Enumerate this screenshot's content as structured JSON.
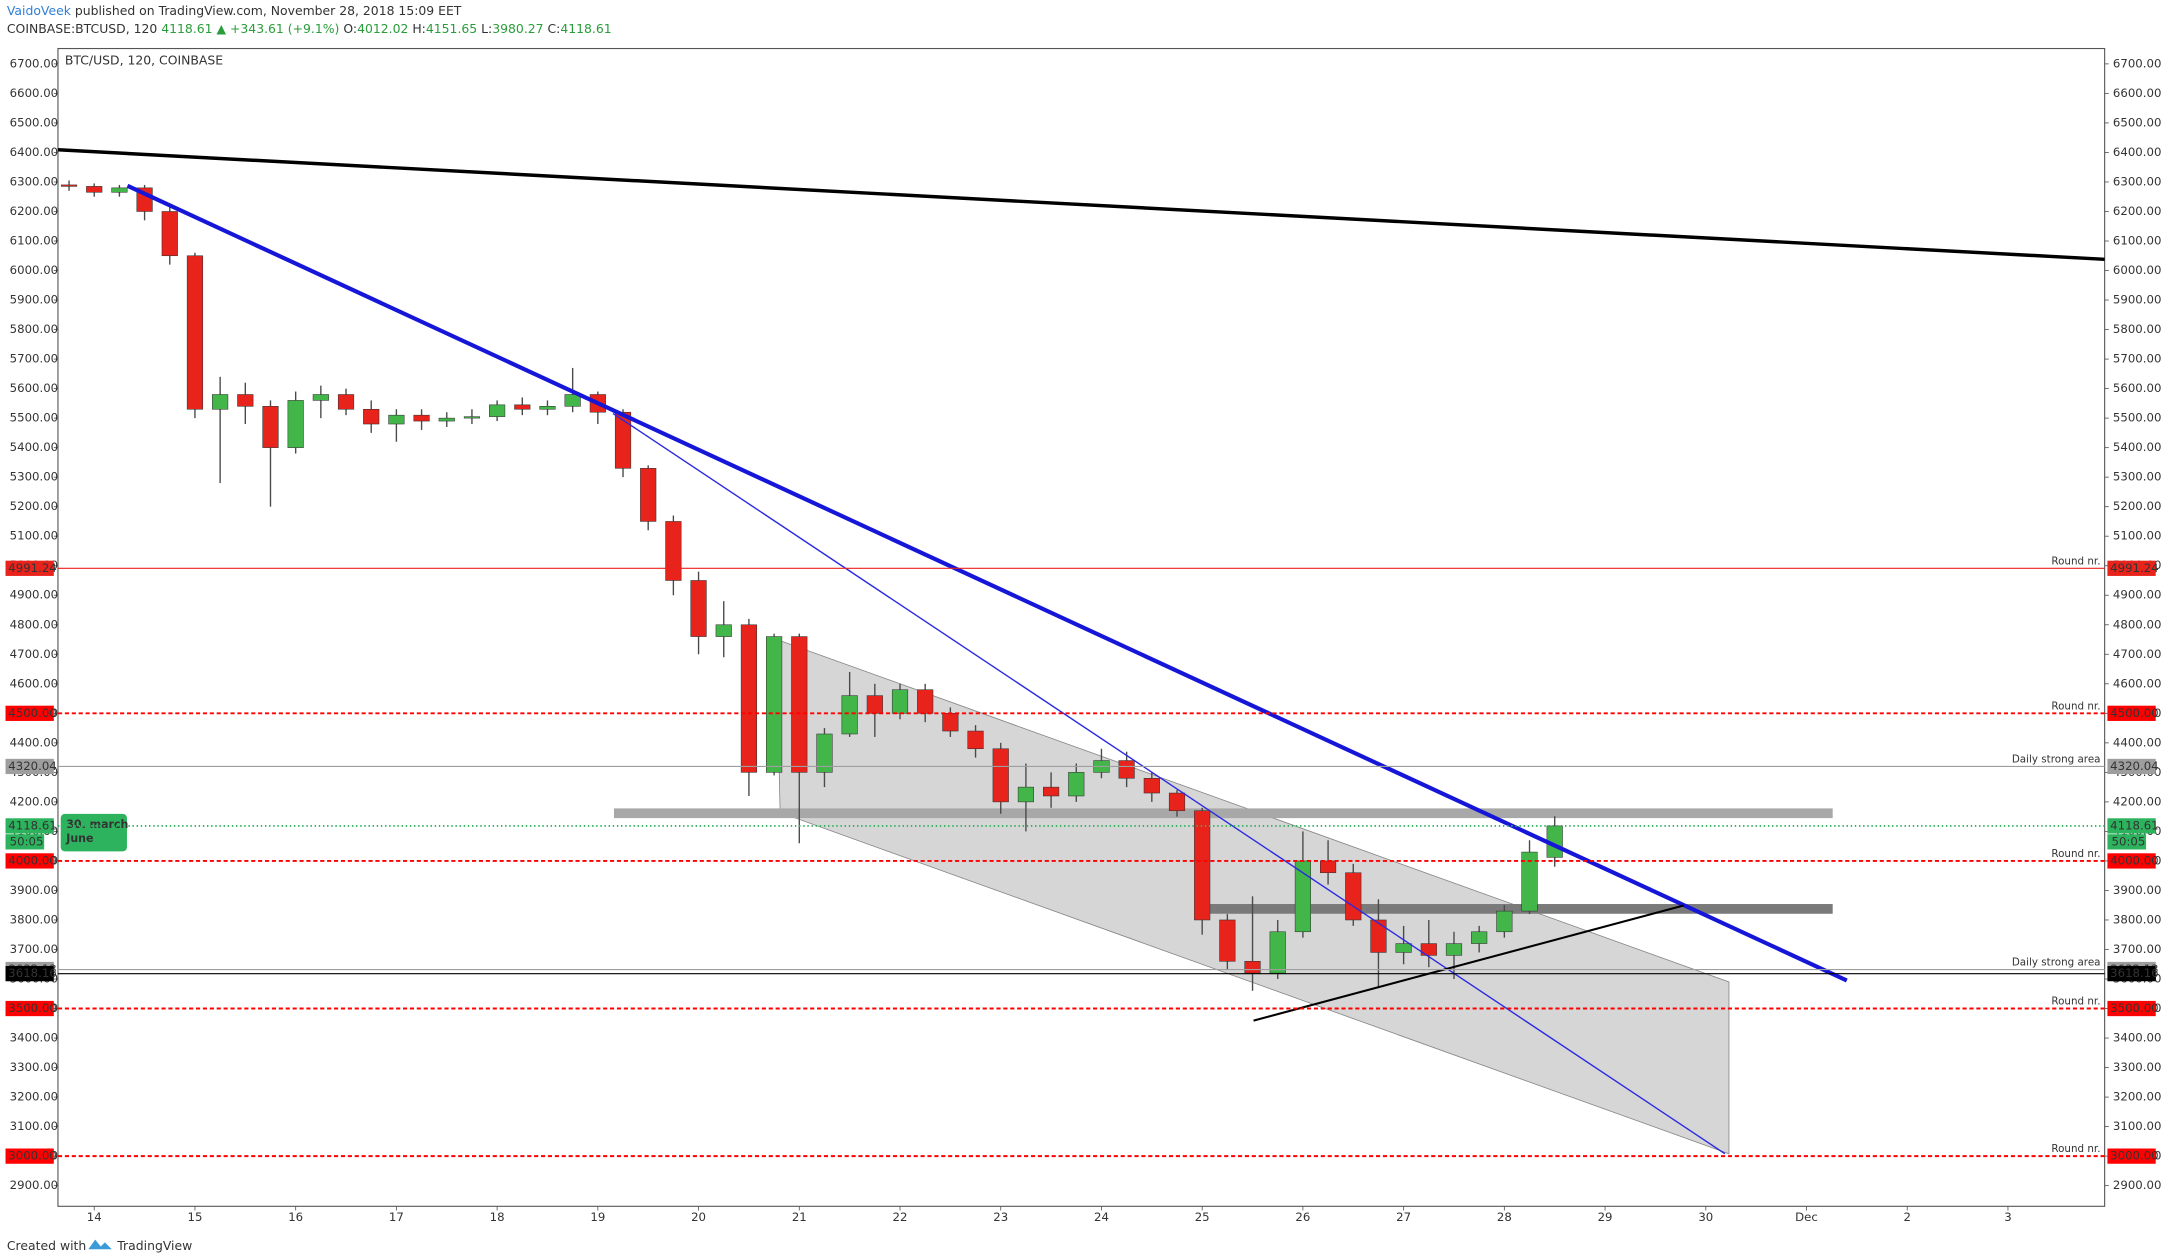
{
  "header": {
    "author": "VaidoVeek",
    "published": "published on TradingView.com, November 28, 2018 15:09 EET",
    "symbol": "COINBASE:BTCUSD, 120",
    "last": "4118.61",
    "change": "▲ +343.61 (+9.1%)",
    "ohlc": [
      [
        "O:",
        "4012.02"
      ],
      [
        "H:",
        "4151.65"
      ],
      [
        "L:",
        "3980.27"
      ],
      [
        "C:",
        "4118.61"
      ]
    ]
  },
  "footer": {
    "created": "Created with",
    "brand": "TradingView"
  },
  "note": {
    "lines": [
      "30. march",
      "June"
    ],
    "color": "#2db35d"
  },
  "chart_data": {
    "type": "candlestick",
    "title": "BTC/USD, 120, COINBASE",
    "x": [
      13.75,
      14,
      14.25,
      14.5,
      14.75,
      15,
      15.25,
      15.5,
      15.75,
      16,
      16.25,
      16.5,
      16.75,
      17,
      17.25,
      17.5,
      17.75,
      18,
      18.25,
      18.5,
      18.75,
      19,
      19.25,
      19.5,
      19.75,
      20,
      20.25,
      20.5,
      20.75,
      21,
      21.25,
      21.5,
      21.75,
      22,
      22.25,
      22.5,
      22.75,
      23,
      23.25,
      23.5,
      23.75,
      24,
      24.25,
      24.5,
      24.75,
      25,
      25.25,
      25.5,
      25.75,
      26,
      26.25,
      26.5,
      26.75,
      27,
      27.25,
      27.5,
      27.75,
      28,
      28.25,
      28.5
    ],
    "open": [
      6290,
      6285,
      6265,
      6280,
      6200,
      6050,
      5530,
      5580,
      5540,
      5400,
      5560,
      5580,
      5530,
      5480,
      5510,
      5490,
      5500,
      5505,
      5545,
      5530,
      5540,
      5580,
      5520,
      5330,
      5150,
      4950,
      4760,
      4800,
      4300,
      4760,
      4300,
      4430,
      4560,
      4500,
      4580,
      4500,
      4440,
      4380,
      4200,
      4250,
      4220,
      4300,
      4340,
      4280,
      4230,
      4170,
      3800,
      3660,
      3620,
      3760,
      4000,
      3960,
      3800,
      3690,
      3720,
      3680,
      3720,
      3760,
      3830,
      4012.02
    ],
    "high": [
      6305,
      6295,
      6290,
      6290,
      6215,
      6060,
      5640,
      5620,
      5560,
      5590,
      5610,
      5600,
      5560,
      5530,
      5530,
      5520,
      5530,
      5560,
      5570,
      5560,
      5670,
      5590,
      5530,
      5340,
      5170,
      4980,
      4880,
      4820,
      4770,
      4770,
      4450,
      4640,
      4600,
      4600,
      4600,
      4520,
      4460,
      4400,
      4330,
      4300,
      4330,
      4380,
      4370,
      4300,
      4240,
      4180,
      3820,
      3880,
      3800,
      4100,
      4070,
      3990,
      3870,
      3780,
      3800,
      3760,
      3780,
      3850,
      4070,
      4151.65
    ],
    "low": [
      6270,
      6250,
      6250,
      6170,
      6020,
      5500,
      5280,
      5480,
      5200,
      5380,
      5500,
      5510,
      5450,
      5420,
      5460,
      5470,
      5480,
      5490,
      5510,
      5510,
      5520,
      5480,
      5300,
      5120,
      4900,
      4700,
      4690,
      4220,
      4290,
      4060,
      4250,
      4420,
      4420,
      4480,
      4470,
      4420,
      4350,
      4160,
      4100,
      4180,
      4200,
      4280,
      4250,
      4200,
      4150,
      3750,
      3630,
      3560,
      3600,
      3740,
      3920,
      3780,
      3570,
      3650,
      3640,
      3600,
      3690,
      3740,
      3820,
      3980.27
    ],
    "close": [
      6285,
      6265,
      6280,
      6200,
      6050,
      5530,
      5580,
      5540,
      5400,
      5560,
      5580,
      5530,
      5480,
      5510,
      5490,
      5500,
      5505,
      5545,
      5530,
      5540,
      5580,
      5520,
      5330,
      5150,
      4950,
      4760,
      4800,
      4300,
      4760,
      4300,
      4430,
      4560,
      4500,
      4580,
      4500,
      4440,
      4380,
      4200,
      4250,
      4220,
      4300,
      4340,
      4280,
      4230,
      4170,
      3800,
      3660,
      3620,
      3760,
      4000,
      3960,
      3800,
      3690,
      3720,
      3680,
      3720,
      3760,
      3830,
      4030,
      4118.61
    ],
    "up_color": "#43b649",
    "down_color": "#e8231c",
    "wick_color": "#4a4a4a",
    "xlim": [
      13.64,
      33.96
    ],
    "ylim": [
      2830,
      6752
    ],
    "xticks": [
      14,
      15,
      16,
      17,
      18,
      19,
      20,
      21,
      22,
      23,
      24,
      25,
      26,
      27,
      28,
      29,
      30,
      {
        "value": 31,
        "label": "Dec"
      },
      {
        "value": 32,
        "label": "2"
      },
      {
        "value": 33,
        "label": "3"
      }
    ],
    "yticks": [
      {
        "value": 2900,
        "label": "2900.00"
      },
      {
        "value": 3000,
        "label": "3000.00"
      },
      {
        "value": 3100,
        "label": "3100.00"
      },
      {
        "value": 3200,
        "label": "3200.00"
      },
      {
        "value": 3300,
        "label": "3300.00"
      },
      {
        "value": 3400,
        "label": "3400.00"
      },
      {
        "value": 3500,
        "label": "3500.00"
      },
      {
        "value": 3600,
        "label": "3600.00"
      },
      {
        "value": 3700,
        "label": "3700.00"
      },
      {
        "value": 3800,
        "label": "3800.00"
      },
      {
        "value": 3900,
        "label": "3900.00"
      },
      {
        "value": 4000,
        "label": "4000.00"
      },
      {
        "value": 4100,
        "label": "4100.00"
      },
      {
        "value": 4200,
        "label": "4200.00"
      },
      {
        "value": 4300,
        "label": "4300.00"
      },
      {
        "value": 4400,
        "label": "4400.00"
      },
      {
        "value": 4500,
        "label": "4500.00"
      },
      {
        "value": 4600,
        "label": "4600.00"
      },
      {
        "value": 4700,
        "label": "4700.00"
      },
      {
        "value": 4800,
        "label": "4800.00"
      },
      {
        "value": 4900,
        "label": "4900.00"
      },
      {
        "value": 5000,
        "label": "5000.00"
      },
      {
        "value": 5100,
        "label": "5100.00"
      },
      {
        "value": 5200,
        "label": "5200.00"
      },
      {
        "value": 5300,
        "label": "5300.00"
      },
      {
        "value": 5400,
        "label": "5400.00"
      },
      {
        "value": 5500,
        "label": "5500.00"
      },
      {
        "value": 5600,
        "label": "5600.00"
      },
      {
        "value": 5700,
        "label": "5700.00"
      },
      {
        "value": 5800,
        "label": "5800.00"
      },
      {
        "value": 5900,
        "label": "5900.00"
      },
      {
        "value": 6000,
        "label": "6000.00"
      },
      {
        "value": 6100,
        "label": "6100.00"
      },
      {
        "value": 6200,
        "label": "6200.00"
      },
      {
        "value": 6300,
        "label": "6300.00"
      },
      {
        "value": 6400,
        "label": "6400.00"
      },
      {
        "value": 6500,
        "label": "6500.00"
      },
      {
        "value": 6600,
        "label": "6600.00"
      },
      {
        "value": 6700,
        "label": "6700.00"
      }
    ],
    "grid": false,
    "levels": [
      {
        "price": 4991.24,
        "color": "#e8231c",
        "style": "solid",
        "note": "Round nr."
      },
      {
        "price": {
          "value": 4500,
          "label": "4500.00"
        },
        "color": "#ff0000",
        "style": "dashed",
        "note": "Round nr."
      },
      {
        "price": 4320.04,
        "color": "#9e9e9e",
        "style": "solid",
        "note": "Daily strong area"
      },
      {
        "price": 4118.61,
        "color": "#2db35d",
        "style": "dotted",
        "countdown": "50:05"
      },
      {
        "price": {
          "value": 4000,
          "label": "4000.00"
        },
        "color": "#ff0000",
        "style": "dashed",
        "note": "Round nr."
      },
      {
        "price": 3632.13,
        "color": "#9e9e9e",
        "style": "solid",
        "note": "Daily strong area"
      },
      {
        "price": 3618.16,
        "color": "#000000",
        "style": "solid"
      },
      {
        "price": {
          "value": 3500,
          "label": "3500.00"
        },
        "color": "#ff0000",
        "style": "dashed",
        "note": "Round nr."
      },
      {
        "price": {
          "value": 3000,
          "label": "3000.00"
        },
        "color": "#ff0000",
        "style": "dashed",
        "note": "Round nr."
      }
    ],
    "drawings": [
      {
        "kind": "polygon",
        "color": "#c8c8c8",
        "points": [
          [
            20.77,
            4751
          ],
          [
            30.23,
            3590
          ],
          [
            30.23,
            3008
          ],
          [
            20.81,
            4164
          ]
        ]
      },
      {
        "kind": "rect",
        "color": "#a8a8a8",
        "points": [
          [
            19.16,
            4178
          ],
          [
            31.26,
            4145
          ]
        ]
      },
      {
        "kind": "rect",
        "color": "#7a7a7a",
        "points": [
          [
            24.95,
            3854
          ],
          [
            31.26,
            3821
          ]
        ]
      },
      {
        "kind": "line",
        "color": "#000000",
        "width": 2.5,
        "points": [
          [
            13.64,
            6409
          ],
          [
            33.96,
            6038
          ]
        ]
      },
      {
        "kind": "line",
        "color": "#1616d8",
        "width": 3,
        "points": [
          [
            14.33,
            6287
          ],
          [
            31.4,
            3595
          ]
        ]
      },
      {
        "kind": "line",
        "color": "#2a2ae0",
        "width": 1,
        "points": [
          [
            19.15,
            5516
          ],
          [
            30.19,
            3008
          ]
        ]
      },
      {
        "kind": "line",
        "color": "#000000",
        "width": 1.5,
        "points": [
          [
            25.51,
            3459
          ],
          [
            29.78,
            3849
          ]
        ]
      }
    ]
  }
}
